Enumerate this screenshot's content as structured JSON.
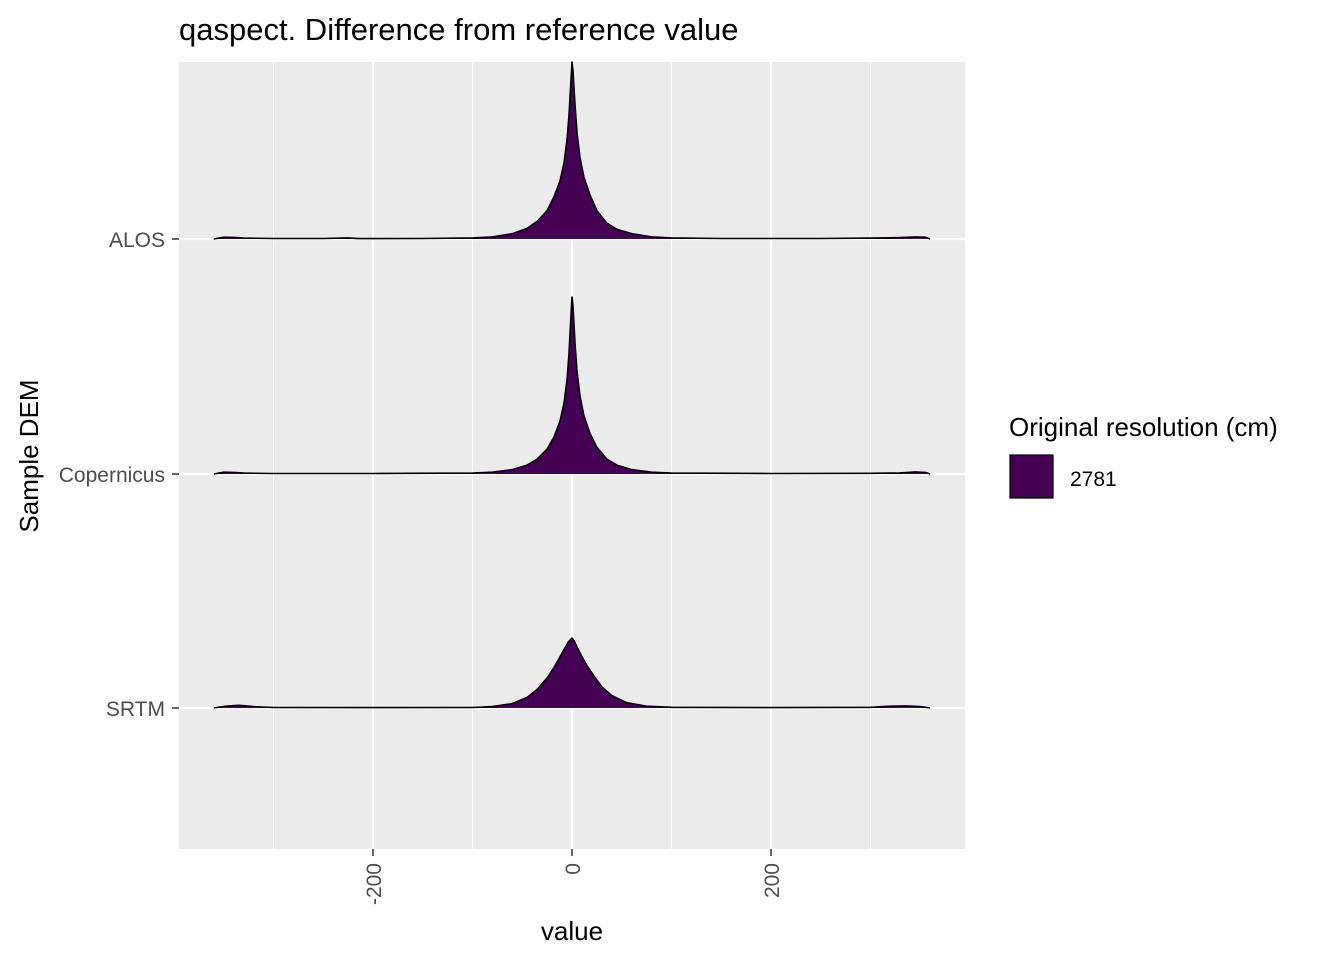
{
  "chart_data": {
    "type": "area",
    "subtype": "ridgeline-density",
    "title": "qaspect. Difference from reference value",
    "xlabel": "value",
    "ylabel": "Sample DEM",
    "xlim": [
      -395,
      395
    ],
    "x_ticks": [
      -200,
      0,
      200
    ],
    "x_minor_grid": [
      -300,
      -100,
      100,
      300
    ],
    "categories": [
      "ALOS",
      "Copernicus",
      "SRTM"
    ],
    "grid": true,
    "background": "#EBEBEB",
    "fill_color": "#440154",
    "outline_color": "#000000",
    "legend": {
      "title": "Original resolution (cm)",
      "placement": "right",
      "entries": [
        {
          "label": "2781",
          "color": "#440154"
        }
      ]
    },
    "series": [
      {
        "category": "ALOS",
        "points": [
          [
            -360,
            0.0
          ],
          [
            -350,
            0.01
          ],
          [
            -340,
            0.009
          ],
          [
            -330,
            0.005
          ],
          [
            -300,
            0.003
          ],
          [
            -250,
            0.003
          ],
          [
            -225,
            0.006
          ],
          [
            -215,
            0.002
          ],
          [
            -150,
            0.003
          ],
          [
            -100,
            0.006
          ],
          [
            -80,
            0.012
          ],
          [
            -60,
            0.03
          ],
          [
            -45,
            0.06
          ],
          [
            -35,
            0.1
          ],
          [
            -25,
            0.16
          ],
          [
            -18,
            0.24
          ],
          [
            -12,
            0.33
          ],
          [
            -8,
            0.43
          ],
          [
            -5,
            0.56
          ],
          [
            -3,
            0.7
          ],
          [
            -1,
            0.9
          ],
          [
            0,
            1.0
          ],
          [
            1,
            0.95
          ],
          [
            3,
            0.76
          ],
          [
            5,
            0.6
          ],
          [
            8,
            0.46
          ],
          [
            12,
            0.35
          ],
          [
            18,
            0.25
          ],
          [
            25,
            0.16
          ],
          [
            35,
            0.09
          ],
          [
            45,
            0.055
          ],
          [
            60,
            0.03
          ],
          [
            80,
            0.012
          ],
          [
            100,
            0.006
          ],
          [
            150,
            0.003
          ],
          [
            250,
            0.003
          ],
          [
            300,
            0.005
          ],
          [
            330,
            0.008
          ],
          [
            345,
            0.012
          ],
          [
            355,
            0.01
          ],
          [
            360,
            0.0
          ]
        ]
      },
      {
        "category": "Copernicus",
        "points": [
          [
            -360,
            0.0
          ],
          [
            -350,
            0.01
          ],
          [
            -340,
            0.009
          ],
          [
            -330,
            0.005
          ],
          [
            -300,
            0.003
          ],
          [
            -200,
            0.003
          ],
          [
            -100,
            0.005
          ],
          [
            -80,
            0.01
          ],
          [
            -60,
            0.025
          ],
          [
            -45,
            0.05
          ],
          [
            -35,
            0.085
          ],
          [
            -25,
            0.14
          ],
          [
            -18,
            0.21
          ],
          [
            -12,
            0.3
          ],
          [
            -8,
            0.4
          ],
          [
            -5,
            0.53
          ],
          [
            -3,
            0.68
          ],
          [
            -1,
            0.9
          ],
          [
            0,
            1.0
          ],
          [
            1,
            0.95
          ],
          [
            3,
            0.74
          ],
          [
            5,
            0.58
          ],
          [
            8,
            0.44
          ],
          [
            12,
            0.33
          ],
          [
            18,
            0.23
          ],
          [
            25,
            0.15
          ],
          [
            35,
            0.085
          ],
          [
            45,
            0.05
          ],
          [
            60,
            0.025
          ],
          [
            80,
            0.01
          ],
          [
            100,
            0.005
          ],
          [
            200,
            0.003
          ],
          [
            300,
            0.004
          ],
          [
            330,
            0.006
          ],
          [
            345,
            0.012
          ],
          [
            355,
            0.009
          ],
          [
            360,
            0.0
          ]
        ]
      },
      {
        "category": "SRTM",
        "points": [
          [
            -360,
            0.0
          ],
          [
            -348,
            0.01
          ],
          [
            -335,
            0.015
          ],
          [
            -320,
            0.008
          ],
          [
            -300,
            0.003
          ],
          [
            -200,
            0.002
          ],
          [
            -100,
            0.003
          ],
          [
            -80,
            0.008
          ],
          [
            -60,
            0.025
          ],
          [
            -45,
            0.06
          ],
          [
            -35,
            0.105
          ],
          [
            -25,
            0.17
          ],
          [
            -18,
            0.23
          ],
          [
            -12,
            0.29
          ],
          [
            -8,
            0.33
          ],
          [
            -4,
            0.37
          ],
          [
            -1,
            0.39
          ],
          [
            0,
            0.395
          ],
          [
            2,
            0.38
          ],
          [
            5,
            0.345
          ],
          [
            10,
            0.29
          ],
          [
            15,
            0.24
          ],
          [
            22,
            0.18
          ],
          [
            30,
            0.12
          ],
          [
            40,
            0.07
          ],
          [
            55,
            0.03
          ],
          [
            75,
            0.01
          ],
          [
            100,
            0.004
          ],
          [
            200,
            0.002
          ],
          [
            300,
            0.004
          ],
          [
            320,
            0.01
          ],
          [
            335,
            0.012
          ],
          [
            350,
            0.008
          ],
          [
            360,
            0.0
          ]
        ]
      }
    ]
  }
}
